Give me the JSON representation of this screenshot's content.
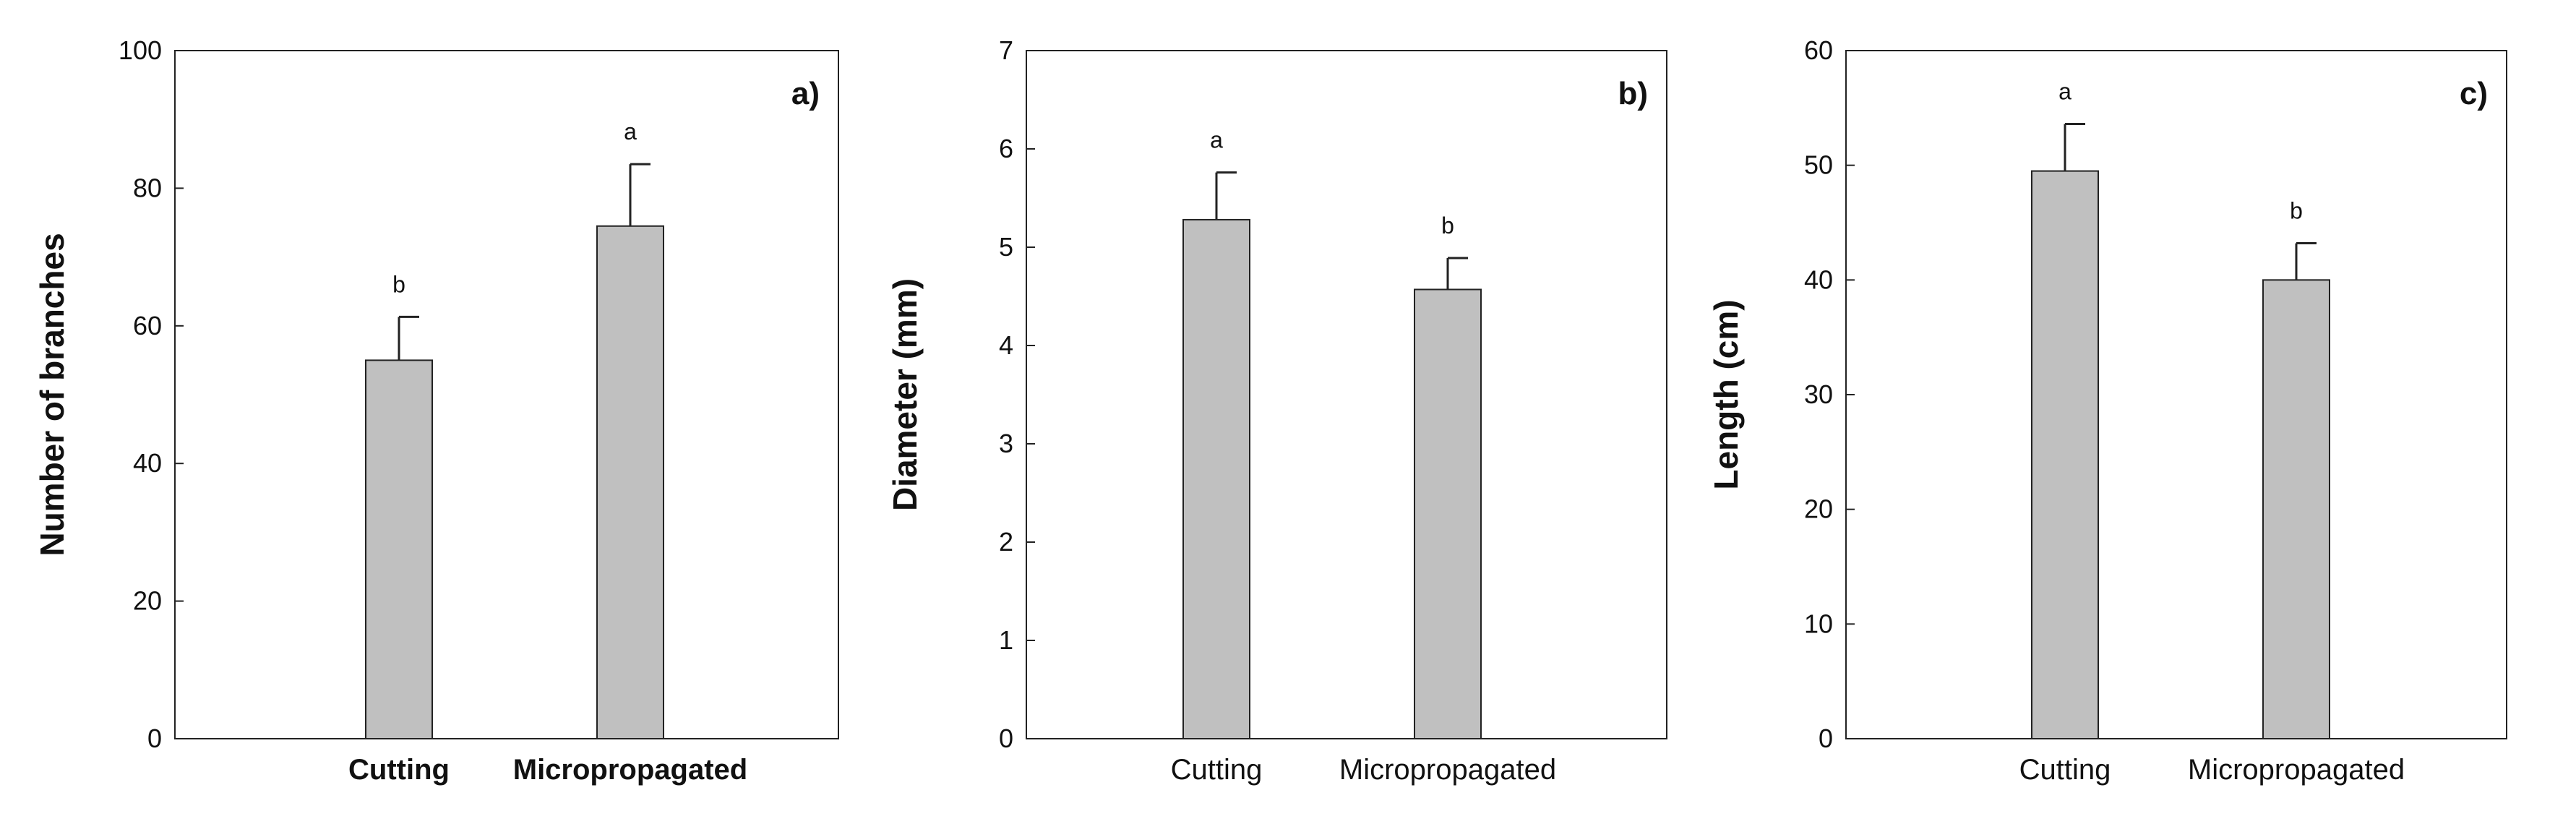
{
  "chart_data": [
    {
      "type": "bar",
      "panel": "a)",
      "ylabel": "Number of branches",
      "ylim": [
        0,
        100
      ],
      "yticks": [
        0,
        20,
        40,
        60,
        80,
        100
      ],
      "categories": [
        "Cutting",
        "Micropropagated"
      ],
      "category_bold": true,
      "values": [
        55,
        74.5
      ],
      "errors": [
        6.3,
        9
      ],
      "significance": [
        "b",
        "a"
      ],
      "bar_color": "#c0c0c0"
    },
    {
      "type": "bar",
      "panel": "b)",
      "ylabel": "Diameter (mm)",
      "ylim": [
        0,
        7
      ],
      "yticks": [
        0,
        1,
        2,
        3,
        4,
        5,
        6,
        7
      ],
      "categories": [
        "Cutting",
        "Micropropagated"
      ],
      "category_bold": false,
      "values": [
        5.28,
        4.57
      ],
      "errors": [
        0.48,
        0.32
      ],
      "significance": [
        "a",
        "b"
      ],
      "bar_color": "#c0c0c0"
    },
    {
      "type": "bar",
      "panel": "c)",
      "ylabel": "Length (cm)",
      "ylim": [
        0,
        60
      ],
      "yticks": [
        0,
        10,
        20,
        30,
        40,
        50,
        60
      ],
      "categories": [
        "Cutting",
        "Micropropagated"
      ],
      "category_bold": false,
      "values": [
        49.5,
        40
      ],
      "errors": [
        4.1,
        3.2
      ],
      "significance": [
        "a",
        "b"
      ],
      "bar_color": "#c0c0c0"
    }
  ]
}
